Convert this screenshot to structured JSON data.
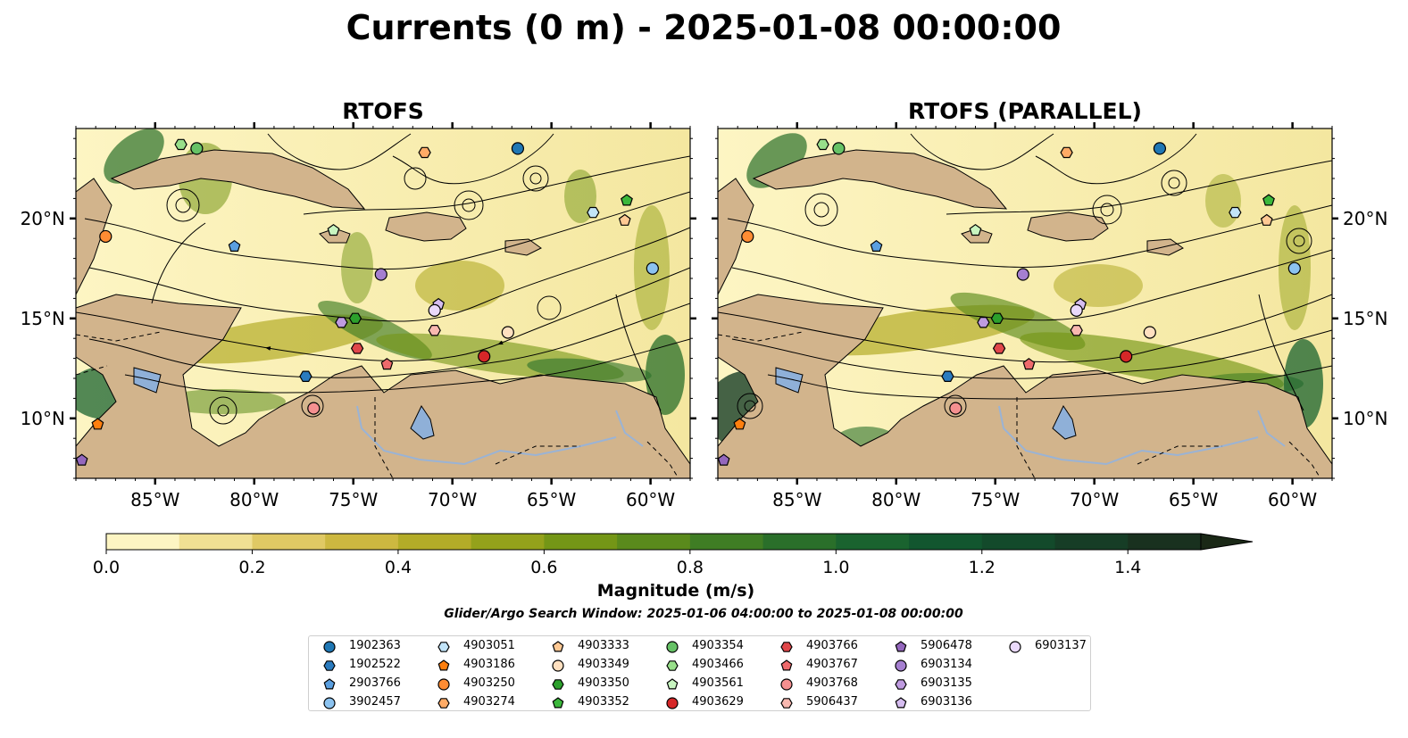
{
  "figure": {
    "title": "Currents (0 m) - 2025-01-08 00:00:00",
    "search_window": "Glider/Argo Search Window: 2025-01-06 04:00:00 to 2025-01-08 00:00:00"
  },
  "colors": {
    "land": "#d2b48c",
    "lakes": "#8fb0d8",
    "rivers": "#9ab3d5",
    "colormap": [
      "#fdf5c3",
      "#f0e093",
      "#e0c964",
      "#cdb840",
      "#b3ac28",
      "#94a21b",
      "#749616",
      "#5a8a1c",
      "#3f7d24",
      "#2a6f2a",
      "#1a632f",
      "#12562f",
      "#134a2b",
      "#163d26",
      "#19311f",
      "#1a2816"
    ]
  },
  "chart_data": [
    {
      "type": "heatmap",
      "panel": "left",
      "title": "RTOFS",
      "xlim": [
        -89,
        -58
      ],
      "ylim": [
        7,
        24.5
      ],
      "xticks": [
        -85,
        -80,
        -75,
        -70,
        -65,
        -60
      ],
      "xtick_labels": [
        "85°W",
        "80°W",
        "75°W",
        "70°W",
        "65°W",
        "60°W"
      ],
      "yticks": [
        10,
        15,
        20
      ],
      "ytick_labels": [
        "10°N",
        "15°N",
        "20°N"
      ],
      "ytick_side": "left",
      "grid": false,
      "variable": "current speed magnitude",
      "floats": [
        {
          "id": "1902363",
          "lon": -66.7,
          "lat": 23.5
        },
        {
          "id": "4903333",
          "lon": -61.3,
          "lat": 19.9
        },
        {
          "id": "4903051",
          "lon": -62.9,
          "lat": 20.3
        },
        {
          "id": "4903352",
          "lon": -61.2,
          "lat": 20.9
        },
        {
          "id": "4903250",
          "lon": -87.5,
          "lat": 19.1
        },
        {
          "id": "2903766",
          "lon": -81.0,
          "lat": 18.6
        },
        {
          "id": "4903561",
          "lon": -76.0,
          "lat": 19.4
        },
        {
          "id": "4903354",
          "lon": -82.9,
          "lat": 23.5
        },
        {
          "id": "4903466",
          "lon": -83.7,
          "lat": 23.7
        },
        {
          "id": "4903274",
          "lon": -71.4,
          "lat": 23.3
        },
        {
          "id": "3902457",
          "lon": -59.9,
          "lat": 17.5
        },
        {
          "id": "6903134",
          "lon": -73.6,
          "lat": 17.2
        },
        {
          "id": "6903136",
          "lon": -70.7,
          "lat": 15.7
        },
        {
          "id": "6903137",
          "lon": -70.9,
          "lat": 15.4
        },
        {
          "id": "6903135",
          "lon": -75.6,
          "lat": 14.8
        },
        {
          "id": "4903350",
          "lon": -74.9,
          "lat": 15.0
        },
        {
          "id": "5906437",
          "lon": -70.9,
          "lat": 14.4
        },
        {
          "id": "4903349",
          "lon": -67.2,
          "lat": 14.3
        },
        {
          "id": "4903766",
          "lon": -74.8,
          "lat": 13.5
        },
        {
          "id": "4903767",
          "lon": -73.3,
          "lat": 12.7
        },
        {
          "id": "4903629",
          "lon": -68.4,
          "lat": 13.1
        },
        {
          "id": "1902522",
          "lon": -77.4,
          "lat": 12.1
        },
        {
          "id": "4903768",
          "lon": -77.0,
          "lat": 10.5
        },
        {
          "id": "4903186",
          "lon": -87.9,
          "lat": 9.7
        },
        {
          "id": "5906478",
          "lon": -88.7,
          "lat": 7.9
        }
      ]
    },
    {
      "type": "heatmap",
      "panel": "right",
      "title": "RTOFS (PARALLEL)",
      "xlim": [
        -89,
        -58
      ],
      "ylim": [
        7,
        24.5
      ],
      "xticks": [
        -85,
        -80,
        -75,
        -70,
        -65,
        -60
      ],
      "xtick_labels": [
        "85°W",
        "80°W",
        "75°W",
        "70°W",
        "65°W",
        "60°W"
      ],
      "yticks": [
        10,
        15,
        20
      ],
      "ytick_labels": [
        "10°N",
        "15°N",
        "20°N"
      ],
      "ytick_side": "right",
      "grid": false,
      "variable": "current speed magnitude",
      "floats": [
        {
          "id": "1902363",
          "lon": -66.7,
          "lat": 23.5
        },
        {
          "id": "4903333",
          "lon": -61.3,
          "lat": 19.9
        },
        {
          "id": "4903051",
          "lon": -62.9,
          "lat": 20.3
        },
        {
          "id": "4903352",
          "lon": -61.2,
          "lat": 20.9
        },
        {
          "id": "4903250",
          "lon": -87.5,
          "lat": 19.1
        },
        {
          "id": "2903766",
          "lon": -81.0,
          "lat": 18.6
        },
        {
          "id": "4903561",
          "lon": -76.0,
          "lat": 19.4
        },
        {
          "id": "4903354",
          "lon": -82.9,
          "lat": 23.5
        },
        {
          "id": "4903466",
          "lon": -83.7,
          "lat": 23.7
        },
        {
          "id": "4903274",
          "lon": -71.4,
          "lat": 23.3
        },
        {
          "id": "3902457",
          "lon": -59.9,
          "lat": 17.5
        },
        {
          "id": "6903134",
          "lon": -73.6,
          "lat": 17.2
        },
        {
          "id": "6903136",
          "lon": -70.7,
          "lat": 15.7
        },
        {
          "id": "6903137",
          "lon": -70.9,
          "lat": 15.4
        },
        {
          "id": "6903135",
          "lon": -75.6,
          "lat": 14.8
        },
        {
          "id": "4903350",
          "lon": -74.9,
          "lat": 15.0
        },
        {
          "id": "5906437",
          "lon": -70.9,
          "lat": 14.4
        },
        {
          "id": "4903349",
          "lon": -67.2,
          "lat": 14.3
        },
        {
          "id": "4903766",
          "lon": -74.8,
          "lat": 13.5
        },
        {
          "id": "4903767",
          "lon": -73.3,
          "lat": 12.7
        },
        {
          "id": "4903629",
          "lon": -68.4,
          "lat": 13.1
        },
        {
          "id": "1902522",
          "lon": -77.4,
          "lat": 12.1
        },
        {
          "id": "4903768",
          "lon": -77.0,
          "lat": 10.5
        },
        {
          "id": "4903186",
          "lon": -87.9,
          "lat": 9.7
        },
        {
          "id": "5906478",
          "lon": -88.7,
          "lat": 7.9
        }
      ]
    }
  ],
  "colorbar": {
    "label": "Magnitude (m/s)",
    "min": 0.0,
    "max": 1.6,
    "step": 0.1,
    "extend": "max",
    "ticks": [
      0.0,
      0.2,
      0.4,
      0.6,
      0.8,
      1.0,
      1.2,
      1.4
    ],
    "tick_labels": [
      "0.0",
      "0.2",
      "0.4",
      "0.6",
      "0.8",
      "1.0",
      "1.2",
      "1.4"
    ]
  },
  "legend": {
    "columns": 7,
    "entries": [
      {
        "id": "1902363",
        "marker": "circle",
        "color": "#1f77b4"
      },
      {
        "id": "1902522",
        "marker": "hexagon",
        "color": "#2a7bbf"
      },
      {
        "id": "2903766",
        "marker": "pentagon",
        "color": "#5a9fe0"
      },
      {
        "id": "3902457",
        "marker": "circle",
        "color": "#8cc3f0"
      },
      {
        "id": "4903051",
        "marker": "hexagon",
        "color": "#c2e4f8"
      },
      {
        "id": "4903186",
        "marker": "pentagon",
        "color": "#ff7f0e"
      },
      {
        "id": "4903250",
        "marker": "circle",
        "color": "#ff8c33"
      },
      {
        "id": "4903274",
        "marker": "hexagon",
        "color": "#ffab66"
      },
      {
        "id": "4903333",
        "marker": "pentagon",
        "color": "#ffc994"
      },
      {
        "id": "4903349",
        "marker": "circle",
        "color": "#ffe0c0"
      },
      {
        "id": "4903350",
        "marker": "hexagon",
        "color": "#2ca02c"
      },
      {
        "id": "4903352",
        "marker": "pentagon",
        "color": "#3bb83b"
      },
      {
        "id": "4903354",
        "marker": "circle",
        "color": "#66c266"
      },
      {
        "id": "4903466",
        "marker": "hexagon",
        "color": "#98df8a"
      },
      {
        "id": "4903561",
        "marker": "pentagon",
        "color": "#c8f5c0"
      },
      {
        "id": "4903629",
        "marker": "circle",
        "color": "#d62728"
      },
      {
        "id": "4903766",
        "marker": "hexagon",
        "color": "#e0474a"
      },
      {
        "id": "4903767",
        "marker": "pentagon",
        "color": "#ee6a6c"
      },
      {
        "id": "4903768",
        "marker": "circle",
        "color": "#f59090"
      },
      {
        "id": "5906437",
        "marker": "hexagon",
        "color": "#f8b8b0"
      },
      {
        "id": "5906478",
        "marker": "pentagon",
        "color": "#9467bd"
      },
      {
        "id": "6903134",
        "marker": "circle",
        "color": "#a57fd0"
      },
      {
        "id": "6903135",
        "marker": "hexagon",
        "color": "#bf9be0"
      },
      {
        "id": "6903136",
        "marker": "pentagon",
        "color": "#d6bdf0"
      },
      {
        "id": "6903137",
        "marker": "circle",
        "color": "#ead9fb"
      }
    ]
  }
}
